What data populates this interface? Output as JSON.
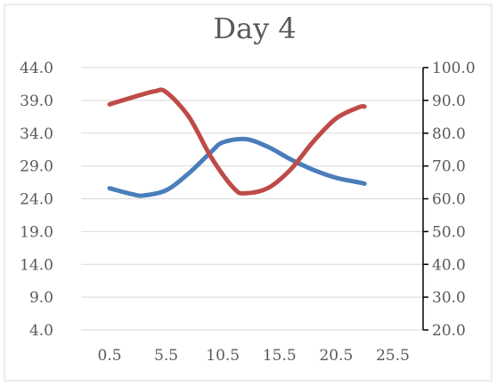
{
  "chart_data": {
    "type": "line",
    "title": "Day 4",
    "xlabel": "",
    "ylabel": "",
    "y2label": "",
    "xlim": [
      0.5,
      25.5
    ],
    "ylim": [
      4.0,
      44.0
    ],
    "y2lim": [
      20.0,
      100.0
    ],
    "x_ticks": [
      "0.5",
      "5.5",
      "10.5",
      "15.5",
      "20.5",
      "25.5"
    ],
    "y_ticks": [
      "4.0",
      "9.0",
      "14.0",
      "19.0",
      "24.0",
      "29.0",
      "34.0",
      "39.0",
      "44.0"
    ],
    "y2_ticks": [
      "20.0",
      "30.0",
      "40.0",
      "50.0",
      "60.0",
      "70.0",
      "80.0",
      "90.0",
      "100.0"
    ],
    "grid": true,
    "legend": "none",
    "series": [
      {
        "axis": "left",
        "color": "#4a7ebb",
        "x": [
          0.5,
          2.5,
          3.5,
          5.5,
          7.5,
          9.5,
          10.5,
          12.5,
          14.5,
          16.5,
          18.5,
          20.5,
          22.5,
          23.0
        ],
        "values": [
          25.6,
          24.7,
          24.5,
          25.3,
          27.9,
          31.2,
          32.6,
          33.1,
          31.9,
          30.0,
          28.4,
          27.2,
          26.5,
          26.3
        ]
      },
      {
        "axis": "right",
        "color": "#be4b48",
        "x": [
          0.5,
          2.5,
          4.5,
          5.5,
          7.5,
          9.5,
          11.5,
          12.5,
          14.5,
          16.5,
          18.5,
          20.5,
          22.5,
          23.0
        ],
        "values": [
          88.8,
          90.9,
          92.8,
          92.5,
          85.0,
          72.5,
          63.1,
          61.7,
          63.3,
          69.0,
          77.5,
          84.5,
          87.9,
          88.1
        ]
      }
    ]
  }
}
